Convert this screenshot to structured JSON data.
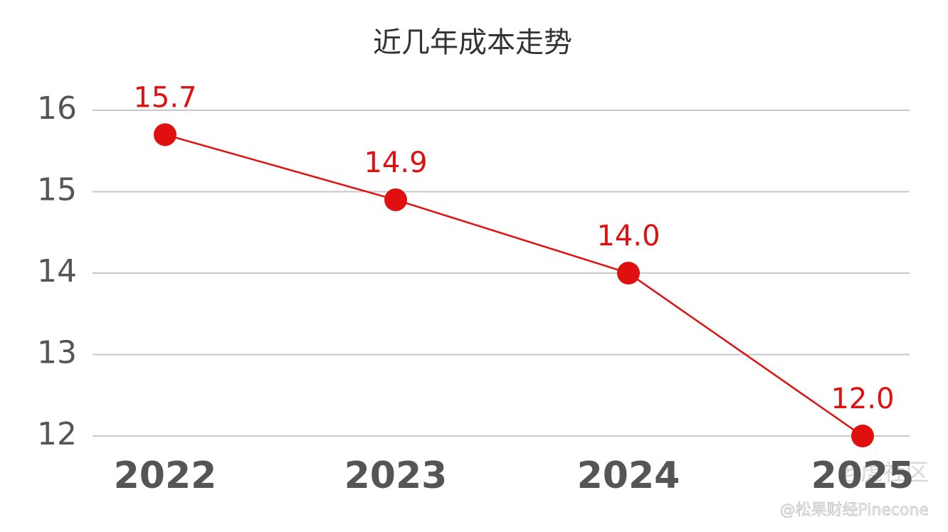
{
  "chart_data": {
    "type": "line",
    "title": "近几年成本走势",
    "categories": [
      "2022",
      "2023",
      "2024",
      "2025"
    ],
    "series": [
      {
        "color": "#e01010",
        "values": [
          15.7,
          14.9,
          14.0,
          12.0
        ],
        "value_labels": [
          "15.7",
          "14.9",
          "14.0",
          "12.0"
        ]
      }
    ],
    "ylim": [
      12,
      16
    ],
    "yticks": [
      12,
      13,
      14,
      15,
      16
    ],
    "grid": true
  },
  "watermarks": [
    "老虎社区",
    "@松果财经Pinecone"
  ]
}
